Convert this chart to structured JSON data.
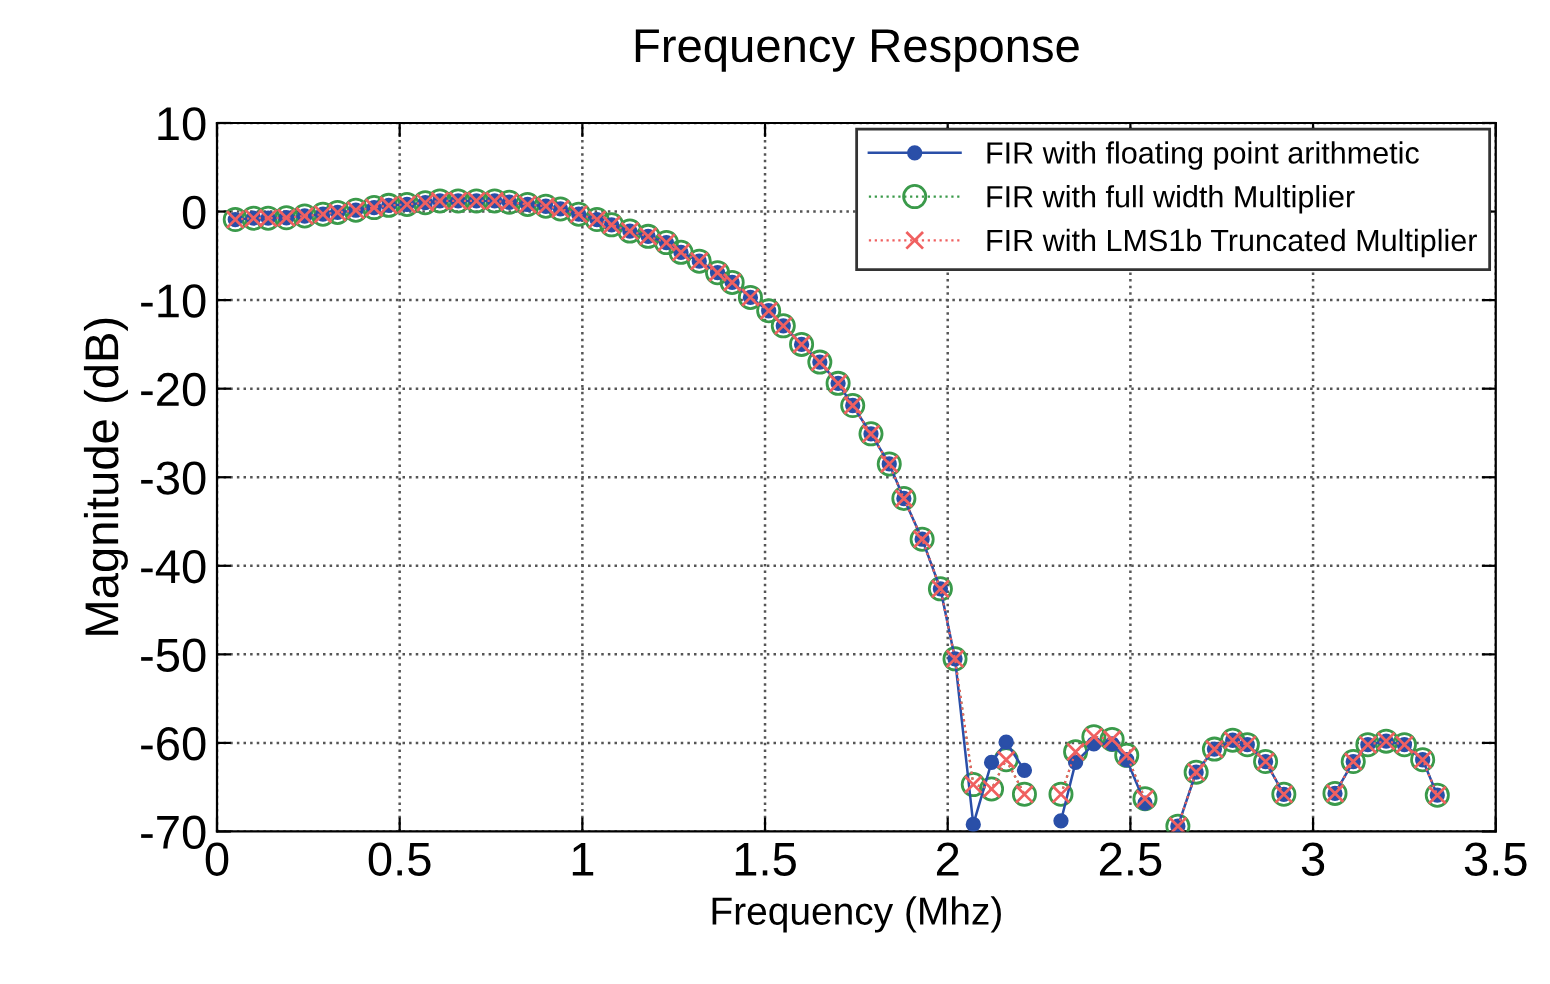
{
  "chart_data": {
    "type": "line",
    "title": "Frequency Response",
    "xlabel": "Frequency (Mhz)",
    "ylabel": "Magnitude (dB)",
    "x": [
      0.05,
      0.1,
      0.14,
      0.19,
      0.24,
      0.29,
      0.33,
      0.38,
      0.43,
      0.47,
      0.52,
      0.57,
      0.61,
      0.66,
      0.71,
      0.76,
      0.8,
      0.85,
      0.9,
      0.94,
      0.99,
      1.04,
      1.08,
      1.13,
      1.18,
      1.23,
      1.27,
      1.32,
      1.37,
      1.41,
      1.46,
      1.51,
      1.55,
      1.6,
      1.65,
      1.7,
      1.74,
      1.79,
      1.84,
      1.88,
      1.93,
      1.98,
      2.02,
      2.07,
      2.12,
      2.16,
      2.21,
      2.26,
      2.31,
      2.35,
      2.4,
      2.45,
      2.49,
      2.54,
      2.59,
      2.63,
      2.68,
      2.73,
      2.78,
      2.82,
      2.87,
      2.92,
      2.96,
      3.01,
      3.06,
      3.11,
      3.15,
      3.2,
      3.25,
      3.3,
      3.34
    ],
    "series": [
      {
        "name": "FIR with floating point arithmetic",
        "color": "#2a4fa8",
        "marker": "circle",
        "line_style": "solid",
        "values": [
          -0.9,
          -0.75,
          -0.75,
          -0.7,
          -0.5,
          -0.3,
          -0.1,
          0.15,
          0.45,
          0.7,
          0.8,
          1.0,
          1.2,
          1.2,
          1.2,
          1.2,
          1.05,
          0.8,
          0.6,
          0.3,
          -0.3,
          -0.9,
          -1.5,
          -2.2,
          -2.8,
          -3.5,
          -4.6,
          -5.6,
          -6.9,
          -8.0,
          -9.7,
          -11.2,
          -12.9,
          -15.0,
          -17.0,
          -19.4,
          -21.9,
          -25.1,
          -28.5,
          -32.4,
          -37.0,
          -42.6,
          -50.5,
          -69.2,
          -62.2,
          -59.9,
          -63.1,
          null,
          -68.8,
          -62.2,
          -60.1,
          -60.1,
          -61.9,
          -66.8,
          null,
          -69.4,
          -63.3,
          -60.7,
          -59.7,
          -60.2,
          -62.1,
          -65.8,
          null,
          null,
          -65.7,
          -62.1,
          -60.2,
          -59.8,
          -60.2,
          -61.9,
          -65.9
        ]
      },
      {
        "name": "FIR with full width Multiplier",
        "color": "#3a9a4a",
        "marker": "circle",
        "line_style": "dotted",
        "values": [
          -0.9,
          -0.75,
          -0.75,
          -0.7,
          -0.5,
          -0.3,
          -0.1,
          0.15,
          0.45,
          0.7,
          0.8,
          1.0,
          1.2,
          1.2,
          1.2,
          1.2,
          1.05,
          0.8,
          0.6,
          0.3,
          -0.3,
          -0.9,
          -1.5,
          -2.2,
          -2.8,
          -3.5,
          -4.6,
          -5.6,
          -6.9,
          -8.0,
          -9.7,
          -11.2,
          -12.9,
          -15.0,
          -17.0,
          -19.4,
          -21.9,
          -25.1,
          -28.5,
          -32.4,
          -37.0,
          -42.6,
          -50.5,
          -64.7,
          -65.2,
          -61.9,
          -65.8,
          null,
          -65.8,
          -61.0,
          -59.3,
          -59.6,
          -61.4,
          -66.3,
          null,
          -69.4,
          -63.3,
          -60.7,
          -59.7,
          -60.2,
          -62.1,
          -65.8,
          null,
          null,
          -65.7,
          -62.1,
          -60.2,
          -59.8,
          -60.2,
          -61.9,
          -65.9
        ]
      },
      {
        "name": "FIR with LMS1b Truncated Multiplier",
        "color": "#f06060",
        "marker": "cross",
        "line_style": "dotted",
        "values": [
          -0.9,
          -0.75,
          -0.75,
          -0.7,
          -0.5,
          -0.3,
          -0.1,
          0.15,
          0.45,
          0.7,
          0.8,
          1.0,
          1.2,
          1.2,
          1.2,
          1.2,
          1.05,
          0.8,
          0.6,
          0.3,
          -0.3,
          -0.9,
          -1.5,
          -2.2,
          -2.8,
          -3.5,
          -4.6,
          -5.6,
          -6.9,
          -8.0,
          -9.7,
          -11.2,
          -12.9,
          -15.0,
          -17.0,
          -19.4,
          -21.9,
          -25.1,
          -28.5,
          -32.4,
          -37.0,
          -42.6,
          -50.5,
          -64.7,
          -65.2,
          -61.9,
          -65.8,
          null,
          -65.8,
          -61.0,
          -59.3,
          -59.6,
          -61.4,
          -66.3,
          null,
          -69.4,
          -63.3,
          -60.7,
          -59.7,
          -60.2,
          -62.1,
          -65.8,
          null,
          null,
          -65.7,
          -62.1,
          -60.2,
          -59.8,
          -60.2,
          -61.9,
          -65.9
        ]
      }
    ],
    "xlim": [
      0,
      3.5
    ],
    "xticks": [
      0,
      0.5,
      1,
      1.5,
      2,
      2.5,
      3,
      3.5
    ],
    "ylim": [
      -70,
      10
    ],
    "yticks": [
      -70,
      -60,
      -50,
      -40,
      -30,
      -20,
      -10,
      0,
      10
    ],
    "grid": true,
    "legend": "top right"
  }
}
